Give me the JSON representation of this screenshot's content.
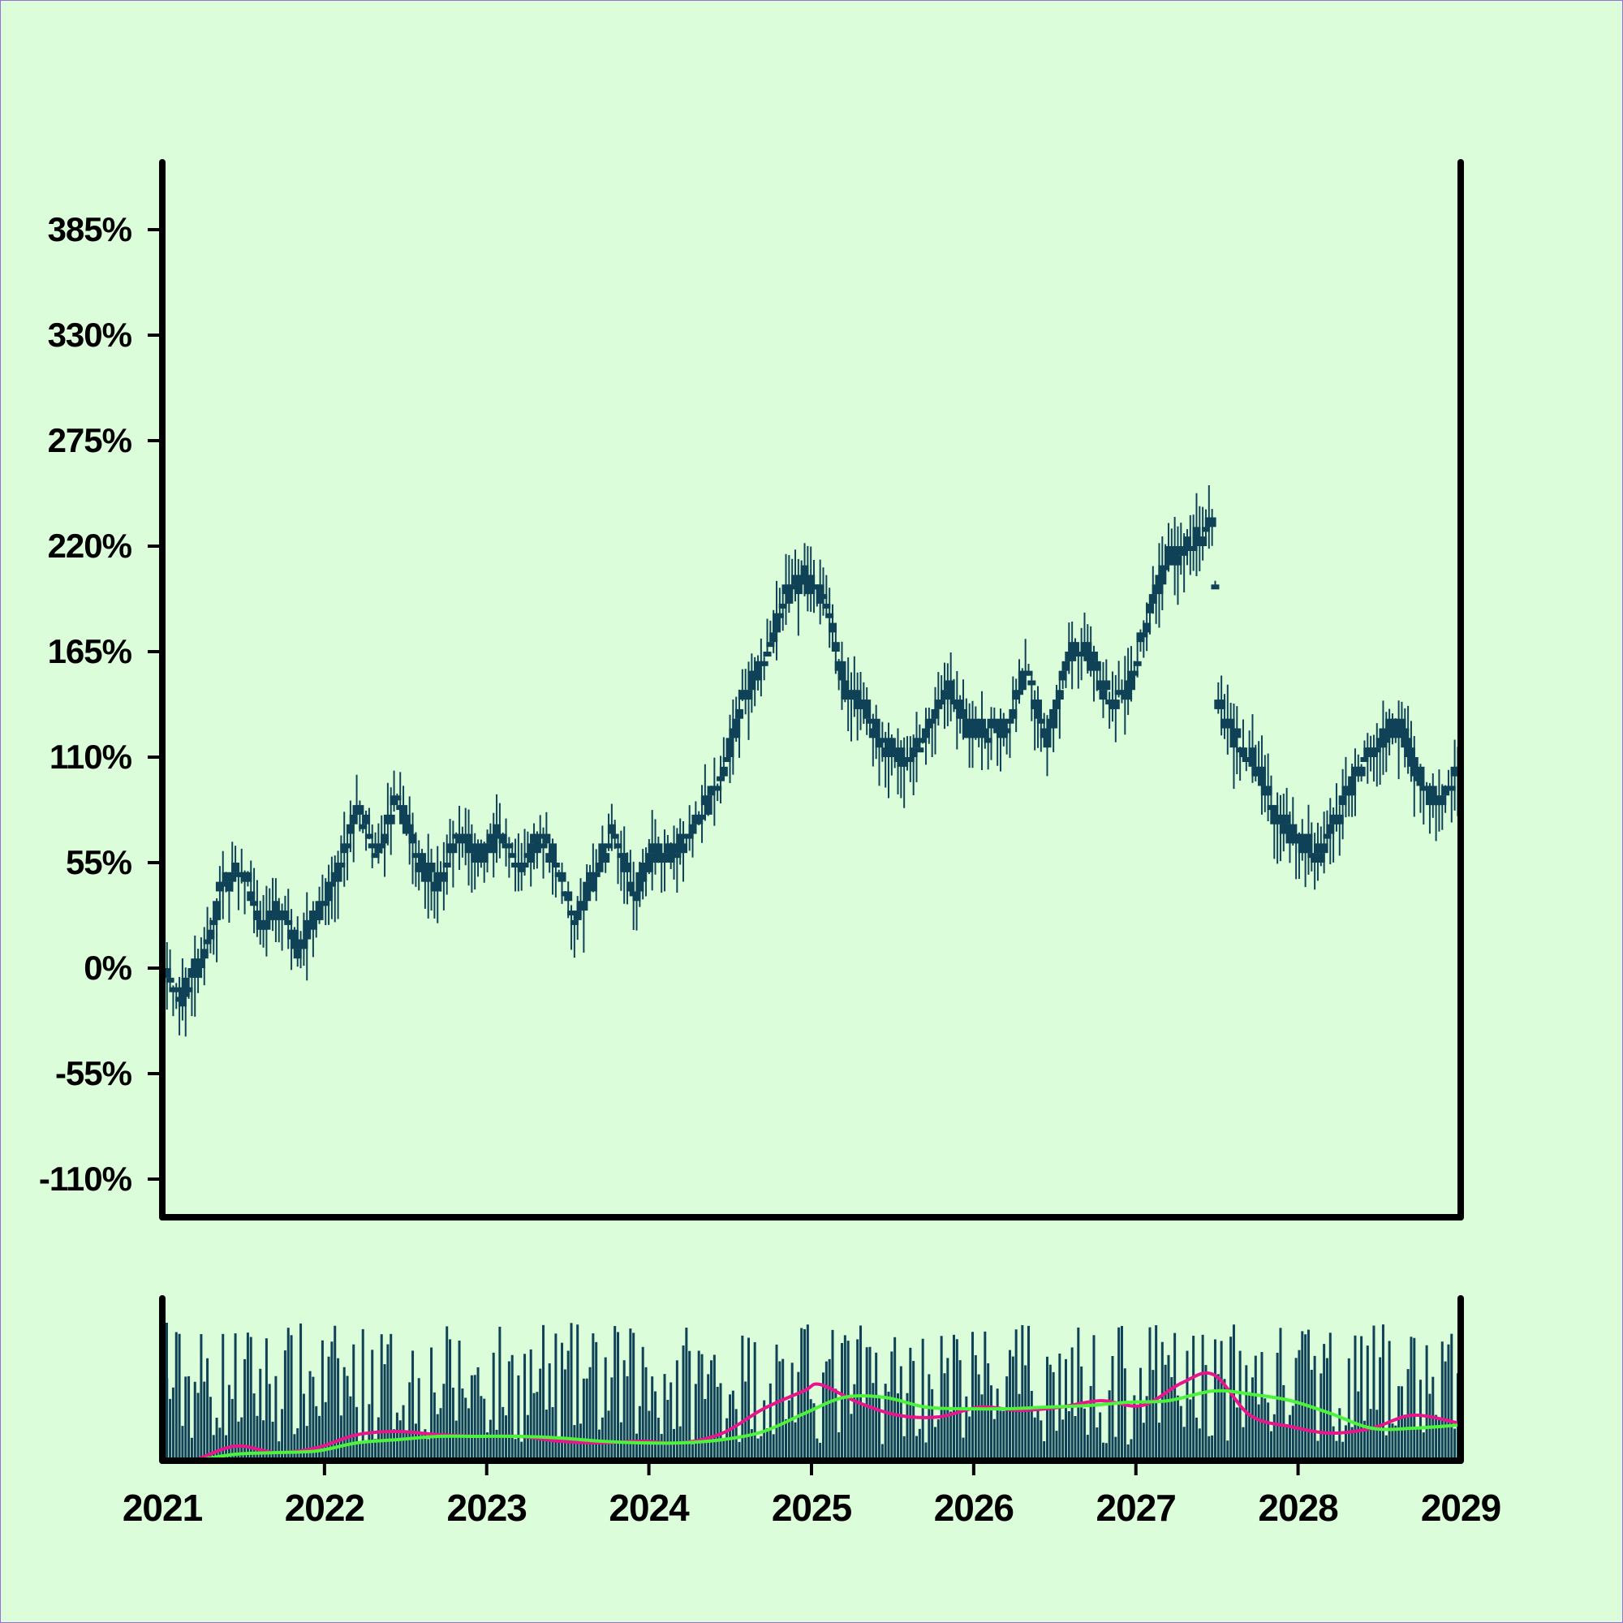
{
  "colors": {
    "background": "#dcfdda",
    "candle": "#0f4257",
    "volume": "#0f4257",
    "axis": "#000000",
    "ma_short": "#e8158c",
    "ma_long": "#4cf23c"
  },
  "chart_data": {
    "type": "candlestick",
    "title": "",
    "price_panel": {
      "y_unit": "%",
      "ylim": [
        -130,
        420
      ],
      "yticks": [
        -110,
        -55,
        0,
        55,
        110,
        165,
        220,
        275,
        330,
        385
      ],
      "ytick_labels": [
        "-110%",
        "-55%",
        "0%",
        "55%",
        "110%",
        "165%",
        "220%",
        "275%",
        "330%",
        "385%"
      ],
      "close_anchors": [
        [
          "2021-01-01",
          0
        ],
        [
          "2021-02-15",
          -15
        ],
        [
          "2021-04-01",
          5
        ],
        [
          "2021-05-15",
          42
        ],
        [
          "2021-07-01",
          52
        ],
        [
          "2021-08-15",
          20
        ],
        [
          "2021-09-25",
          34
        ],
        [
          "2021-11-01",
          10
        ],
        [
          "2021-12-15",
          30
        ],
        [
          "2022-02-01",
          48
        ],
        [
          "2022-03-15",
          85
        ],
        [
          "2022-05-01",
          57
        ],
        [
          "2022-06-15",
          90
        ],
        [
          "2022-08-01",
          55
        ],
        [
          "2022-09-15",
          45
        ],
        [
          "2022-11-01",
          72
        ],
        [
          "2022-12-15",
          58
        ],
        [
          "2023-02-01",
          72
        ],
        [
          "2023-03-15",
          52
        ],
        [
          "2023-05-01",
          68
        ],
        [
          "2023-06-01",
          58
        ],
        [
          "2023-07-15",
          25
        ],
        [
          "2023-09-01",
          48
        ],
        [
          "2023-10-15",
          73
        ],
        [
          "2023-12-01",
          40
        ],
        [
          "2024-01-15",
          62
        ],
        [
          "2024-03-01",
          60
        ],
        [
          "2024-05-01",
          82
        ],
        [
          "2024-06-15",
          100
        ],
        [
          "2024-08-01",
          140
        ],
        [
          "2024-09-15",
          160
        ],
        [
          "2024-11-01",
          195
        ],
        [
          "2024-12-15",
          203
        ],
        [
          "2025-02-01",
          195
        ],
        [
          "2025-03-15",
          148
        ],
        [
          "2025-05-01",
          136
        ],
        [
          "2025-06-15",
          115
        ],
        [
          "2025-08-01",
          110
        ],
        [
          "2025-09-15",
          120
        ],
        [
          "2025-11-01",
          148
        ],
        [
          "2025-12-15",
          127
        ],
        [
          "2026-02-01",
          122
        ],
        [
          "2026-03-15",
          125
        ],
        [
          "2026-05-01",
          158
        ],
        [
          "2026-06-15",
          118
        ],
        [
          "2026-08-01",
          162
        ],
        [
          "2026-09-15",
          165
        ],
        [
          "2026-11-01",
          140
        ],
        [
          "2026-12-15",
          145
        ],
        [
          "2027-02-01",
          185
        ],
        [
          "2027-03-15",
          214
        ],
        [
          "2027-05-15",
          222
        ],
        [
          "2027-06-25",
          235
        ],
        [
          "2027-07-05",
          140
        ],
        [
          "2027-08-15",
          118
        ],
        [
          "2027-10-01",
          105
        ],
        [
          "2027-11-15",
          78
        ],
        [
          "2028-01-01",
          68
        ],
        [
          "2028-02-15",
          58
        ],
        [
          "2028-04-01",
          80
        ],
        [
          "2028-05-15",
          105
        ],
        [
          "2028-07-01",
          118
        ],
        [
          "2028-08-15",
          127
        ],
        [
          "2028-10-01",
          98
        ],
        [
          "2028-11-15",
          83
        ],
        [
          "2028-12-31",
          108
        ]
      ]
    },
    "volume_panel": {
      "series": [
        {
          "color": "#e8158c",
          "points": [
            [
              "2021-03-15",
              0.0
            ],
            [
              "2021-06-15",
              0.09
            ],
            [
              "2021-09-15",
              0.05
            ],
            [
              "2021-12-15",
              0.08
            ],
            [
              "2022-03-15",
              0.16
            ],
            [
              "2022-06-15",
              0.18
            ],
            [
              "2022-09-15",
              0.16
            ],
            [
              "2022-12-15",
              0.15
            ],
            [
              "2023-03-15",
              0.15
            ],
            [
              "2023-06-15",
              0.12
            ],
            [
              "2023-09-15",
              0.11
            ],
            [
              "2023-12-15",
              0.12
            ],
            [
              "2024-03-15",
              0.11
            ],
            [
              "2024-06-15",
              0.17
            ],
            [
              "2024-09-15",
              0.32
            ],
            [
              "2024-12-15",
              0.43
            ],
            [
              "2025-01-20",
              0.47
            ],
            [
              "2025-04-15",
              0.36
            ],
            [
              "2025-07-15",
              0.28
            ],
            [
              "2025-10-15",
              0.27
            ],
            [
              "2026-01-15",
              0.33
            ],
            [
              "2026-04-15",
              0.31
            ],
            [
              "2026-07-15",
              0.33
            ],
            [
              "2026-10-15",
              0.37
            ],
            [
              "2027-01-15",
              0.34
            ],
            [
              "2027-04-15",
              0.48
            ],
            [
              "2027-06-25",
              0.53
            ],
            [
              "2027-09-15",
              0.28
            ],
            [
              "2027-12-15",
              0.21
            ],
            [
              "2028-03-15",
              0.17
            ],
            [
              "2028-06-15",
              0.2
            ],
            [
              "2028-09-15",
              0.28
            ],
            [
              "2028-12-31",
              0.23
            ]
          ]
        },
        {
          "color": "#4cf23c",
          "points": [
            [
              "2021-03-15",
              0.0
            ],
            [
              "2021-06-15",
              0.04
            ],
            [
              "2021-09-15",
              0.05
            ],
            [
              "2021-12-15",
              0.06
            ],
            [
              "2022-03-15",
              0.11
            ],
            [
              "2022-06-15",
              0.13
            ],
            [
              "2022-09-15",
              0.15
            ],
            [
              "2022-12-15",
              0.15
            ],
            [
              "2023-03-15",
              0.15
            ],
            [
              "2023-06-15",
              0.14
            ],
            [
              "2023-09-15",
              0.12
            ],
            [
              "2023-12-15",
              0.11
            ],
            [
              "2024-03-15",
              0.11
            ],
            [
              "2024-06-15",
              0.13
            ],
            [
              "2024-09-15",
              0.18
            ],
            [
              "2024-12-15",
              0.29
            ],
            [
              "2025-03-15",
              0.39
            ],
            [
              "2025-06-15",
              0.39
            ],
            [
              "2025-09-15",
              0.33
            ],
            [
              "2025-12-15",
              0.32
            ],
            [
              "2026-03-15",
              0.32
            ],
            [
              "2026-06-15",
              0.33
            ],
            [
              "2026-09-15",
              0.34
            ],
            [
              "2026-12-15",
              0.36
            ],
            [
              "2027-03-15",
              0.37
            ],
            [
              "2027-06-25",
              0.43
            ],
            [
              "2027-09-15",
              0.41
            ],
            [
              "2027-12-15",
              0.37
            ],
            [
              "2028-03-15",
              0.29
            ],
            [
              "2028-06-15",
              0.2
            ],
            [
              "2028-09-15",
              0.2
            ],
            [
              "2028-12-31",
              0.22
            ]
          ]
        }
      ]
    },
    "x_axis": {
      "type": "date",
      "range": [
        "2021-01-01",
        "2029-01-01"
      ],
      "ticks": [
        "2021-01-01",
        "2022-01-01",
        "2023-01-01",
        "2024-01-01",
        "2025-01-01",
        "2026-01-01",
        "2027-01-01",
        "2028-01-01",
        "2029-01-01"
      ],
      "tick_labels": [
        "2021",
        "2022",
        "2023",
        "2024",
        "2025",
        "2026",
        "2027",
        "2028",
        "2029"
      ]
    },
    "grid": false,
    "legend": "none"
  }
}
